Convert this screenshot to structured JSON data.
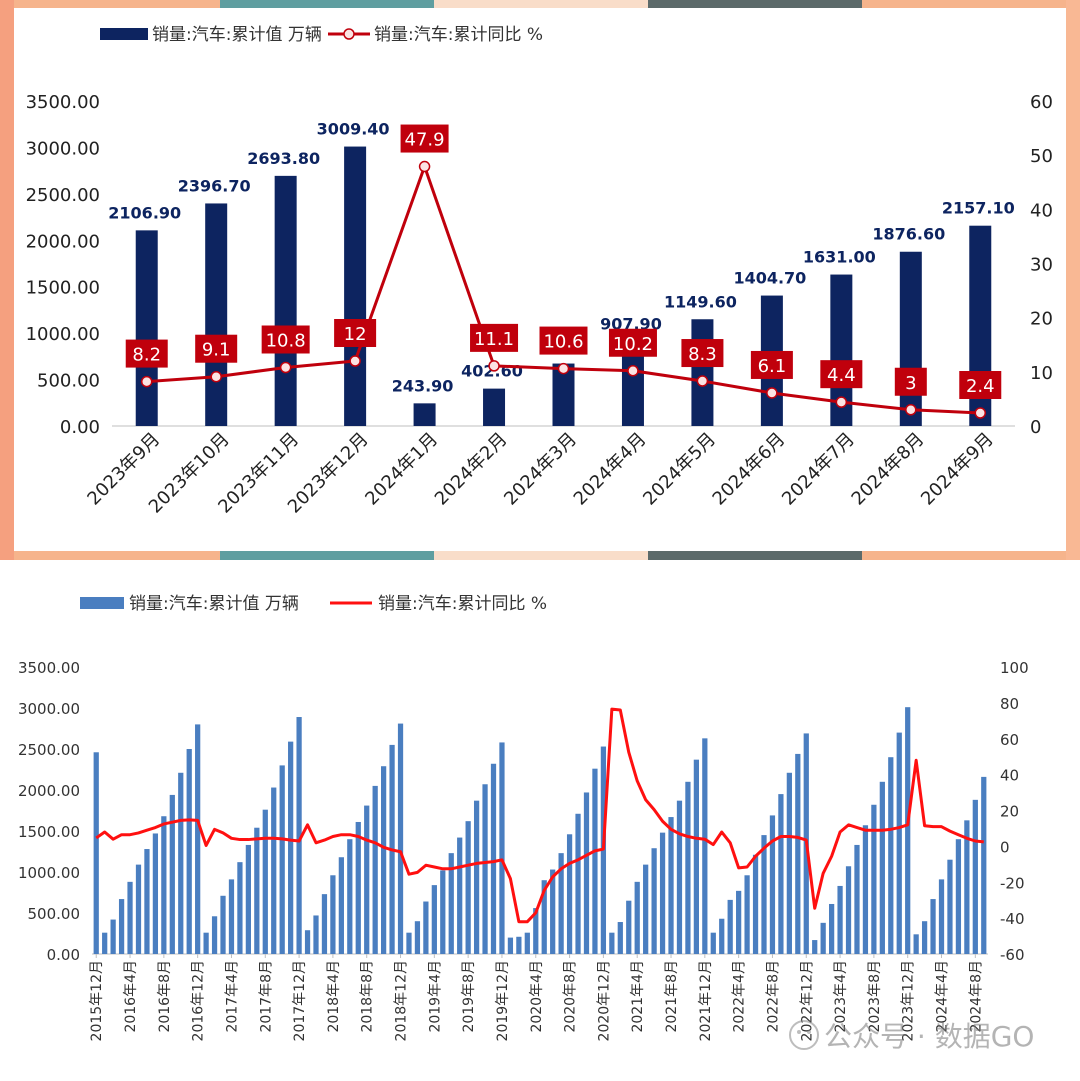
{
  "colors": {
    "frame_left": "#f5a07f",
    "frame_right": "#f9b894",
    "bar_top": "#0d2460",
    "line_top": "#c0000c",
    "label_box": "#c0000c",
    "bar_bottom": "#4a7ec0",
    "line_bottom": "#ff1010",
    "stripe_teal": "#5f9ea0",
    "stripe_cream": "#f9ddc9",
    "stripe_slate": "#5c6a6a",
    "stripe_peach": "#f6b48c"
  },
  "watermark": {
    "text": "公众号 · 数据GO",
    "icon": "wechat-official-account-icon"
  },
  "chart_data": [
    {
      "type": "bar",
      "legend": {
        "bar_label": "销量:汽车:累计值 万辆",
        "line_label": "销量:汽车:累计同比 %",
        "position": "top-left"
      },
      "categories": [
        "2023年9月",
        "2023年10月",
        "2023年11月",
        "2023年12月",
        "2024年1月",
        "2024年2月",
        "2024年3月",
        "2024年4月",
        "2024年5月",
        "2024年6月",
        "2024年7月",
        "2024年8月",
        "2024年9月"
      ],
      "series": [
        {
          "name": "销量:汽车:累计值 万辆",
          "type": "bar",
          "axis": "left",
          "values": [
            2106.9,
            2396.7,
            2693.8,
            3009.4,
            243.9,
            402.6,
            672.6,
            907.9,
            1149.6,
            1404.7,
            1631.0,
            1876.6,
            2157.1
          ],
          "labels": [
            "2106.90",
            "2396.70",
            "2693.80",
            "3009.40",
            "243.90",
            "402.60",
            "",
            "907.90",
            "1149.60",
            "1404.70",
            "1631.00",
            "1876.60",
            "2157.10"
          ]
        },
        {
          "name": "销量:汽车:累计同比 %",
          "type": "line",
          "axis": "right",
          "values": [
            8.2,
            9.1,
            10.8,
            12,
            47.9,
            11.1,
            10.6,
            10.2,
            8.3,
            6.1,
            4.4,
            3,
            2.4
          ],
          "labels": [
            "8.2",
            "9.1",
            "10.8",
            "12",
            "47.9",
            "11.1",
            "10.6",
            "10.2",
            "8.3",
            "6.1",
            "4.4",
            "3",
            "2.4"
          ]
        }
      ],
      "left_axis": {
        "min": 0,
        "max": 3500,
        "ticks": [
          "0.00",
          "500.00",
          "1000.00",
          "1500.00",
          "2000.00",
          "2500.00",
          "3000.00",
          "3500.00"
        ]
      },
      "right_axis": {
        "min": 0,
        "max": 60,
        "ticks": [
          "0",
          "10",
          "20",
          "30",
          "40",
          "50",
          "60"
        ]
      },
      "grid": false
    },
    {
      "type": "bar",
      "legend": {
        "bar_label": "销量:汽车:累计值 万辆",
        "line_label": "销量:汽车:累计同比 %",
        "position": "top-left"
      },
      "start": "2015-12",
      "tick_labels": [
        "2015年12月",
        "2016年4月",
        "2016年8月",
        "2016年12月",
        "2017年4月",
        "2017年8月",
        "2017年12月",
        "2018年4月",
        "2018年8月",
        "2018年12月",
        "2019年4月",
        "2019年8月",
        "2019年12月",
        "2020年4月",
        "2020年8月",
        "2020年12月",
        "2021年4月",
        "2021年8月",
        "2021年12月",
        "2022年4月",
        "2022年8月",
        "2022年12月",
        "2023年4月",
        "2023年8月",
        "2023年12月",
        "2024年4月",
        "2024年8月"
      ],
      "series": [
        {
          "name": "销量:汽车:累计值 万辆",
          "type": "bar",
          "axis": "left",
          "values": [
            2460,
            260,
            420,
            670,
            880,
            1090,
            1280,
            1470,
            1680,
            1940,
            2210,
            2500,
            2800,
            260,
            460,
            710,
            910,
            1120,
            1330,
            1540,
            1760,
            2030,
            2300,
            2590,
            2890,
            290,
            470,
            730,
            960,
            1180,
            1400,
            1610,
            1810,
            2050,
            2290,
            2550,
            2810,
            260,
            400,
            640,
            840,
            1020,
            1230,
            1420,
            1620,
            1870,
            2070,
            2320,
            2580,
            200,
            210,
            260,
            560,
            900,
            1030,
            1230,
            1460,
            1710,
            1970,
            2260,
            2530,
            260,
            390,
            650,
            880,
            1090,
            1290,
            1480,
            1670,
            1870,
            2100,
            2370,
            2630,
            260,
            430,
            660,
            770,
            960,
            1210,
            1450,
            1690,
            1950,
            2210,
            2440,
            2690,
            170,
            380,
            610,
            830,
            1070,
            1330,
            1570,
            1820,
            2100,
            2400,
            2700,
            3010,
            240,
            400,
            670,
            910,
            1150,
            1400,
            1630,
            1880,
            2160
          ]
        },
        {
          "name": "销量:汽车:累计同比 %",
          "type": "line",
          "axis": "right",
          "values": [
            4.7,
            8,
            4,
            6.5,
            6.5,
            7.5,
            9,
            10.5,
            12.5,
            13.5,
            14.5,
            14.8,
            14.5,
            0.5,
            9.5,
            7.5,
            4.5,
            3.8,
            3.8,
            4.2,
            4.5,
            4.5,
            4.2,
            3.5,
            3,
            12,
            2,
            3.5,
            5.5,
            6.5,
            6.5,
            5.5,
            3.5,
            2,
            -0.5,
            -2,
            -3,
            -15.5,
            -14.5,
            -10.5,
            -11.5,
            -12.5,
            -12.5,
            -11.5,
            -10.5,
            -9.5,
            -9,
            -8.5,
            -7.5,
            -18,
            -42,
            -42,
            -37,
            -24.5,
            -17,
            -12.5,
            -9.5,
            -7.5,
            -5,
            -2.5,
            -1.5,
            76.5,
            76,
            52.5,
            36.5,
            26,
            20.5,
            14,
            9.5,
            7,
            5.5,
            4.5,
            4,
            1,
            8,
            2,
            -12,
            -11.5,
            -5.5,
            -1,
            3,
            5.5,
            5.5,
            5,
            3.5,
            -34.5,
            -15,
            -5.5,
            8,
            12,
            10.5,
            9,
            9,
            9,
            9.5,
            10.5,
            12,
            48,
            11.5,
            11,
            11,
            8.5,
            6.5,
            4.5,
            3,
            2.5
          ]
        }
      ],
      "left_axis": {
        "min": 0,
        "max": 3500,
        "ticks": [
          "0.00",
          "500.00",
          "1000.00",
          "1500.00",
          "2000.00",
          "2500.00",
          "3000.00",
          "3500.00"
        ]
      },
      "right_axis": {
        "min": -60,
        "max": 100,
        "ticks": [
          "-60",
          "-40",
          "-20",
          "0",
          "20",
          "40",
          "60",
          "80",
          "100"
        ]
      },
      "grid": false
    }
  ]
}
